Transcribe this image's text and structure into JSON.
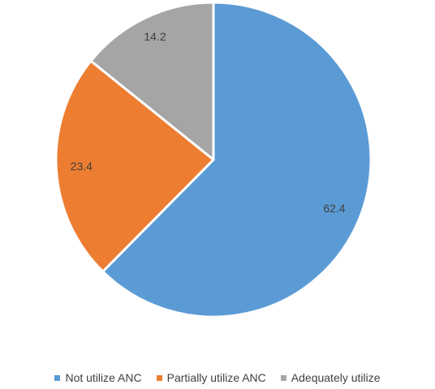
{
  "chart_data": {
    "type": "pie",
    "categories": [
      "Not utilize ANC",
      "Partially utilize ANC",
      "Adequately utilize"
    ],
    "values": [
      62.4,
      23.4,
      14.2
    ],
    "value_labels": [
      "62.4",
      "23.4",
      "14.2"
    ],
    "colors": [
      "#5B9BD5",
      "#ED7D31",
      "#A5A5A5"
    ],
    "start": "12 o'clock, clockwise",
    "legend_position": "bottom",
    "title": ""
  }
}
